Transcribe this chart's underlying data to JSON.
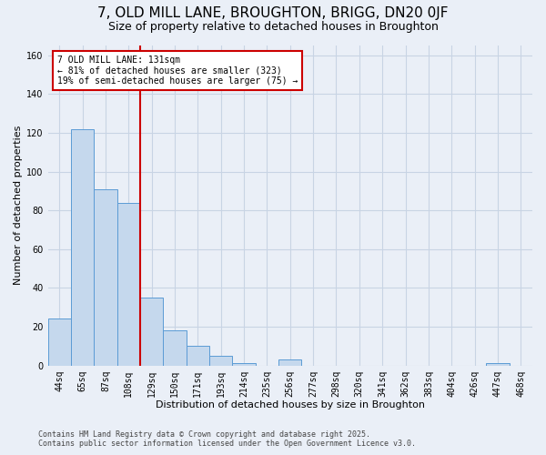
{
  "title_line1": "7, OLD MILL LANE, BROUGHTON, BRIGG, DN20 0JF",
  "title_line2": "Size of property relative to detached houses in Broughton",
  "xlabel": "Distribution of detached houses by size in Broughton",
  "ylabel": "Number of detached properties",
  "categories": [
    "44sq",
    "65sq",
    "87sq",
    "108sq",
    "129sq",
    "150sq",
    "171sq",
    "193sq",
    "214sq",
    "235sq",
    "256sq",
    "277sq",
    "298sq",
    "320sq",
    "341sq",
    "362sq",
    "383sq",
    "404sq",
    "426sq",
    "447sq",
    "468sq"
  ],
  "values": [
    24,
    122,
    91,
    84,
    35,
    18,
    10,
    5,
    1,
    0,
    3,
    0,
    0,
    0,
    0,
    0,
    0,
    0,
    0,
    1,
    0
  ],
  "bar_color": "#c5d8ed",
  "bar_edge_color": "#5b9bd5",
  "vline_x": 3.5,
  "vline_color": "#cc0000",
  "annotation_text": "7 OLD MILL LANE: 131sqm\n← 81% of detached houses are smaller (323)\n19% of semi-detached houses are larger (75) →",
  "annotation_box_color": "#ffffff",
  "annotation_box_edge_color": "#cc0000",
  "ylim": [
    0,
    165
  ],
  "yticks": [
    0,
    20,
    40,
    60,
    80,
    100,
    120,
    140,
    160
  ],
  "grid_color": "#c8d4e4",
  "background_color": "#eaeff7",
  "footer_line1": "Contains HM Land Registry data © Crown copyright and database right 2025.",
  "footer_line2": "Contains public sector information licensed under the Open Government Licence v3.0.",
  "title_fontsize": 11,
  "subtitle_fontsize": 9,
  "tick_fontsize": 7,
  "label_fontsize": 8,
  "annotation_fontsize": 7
}
